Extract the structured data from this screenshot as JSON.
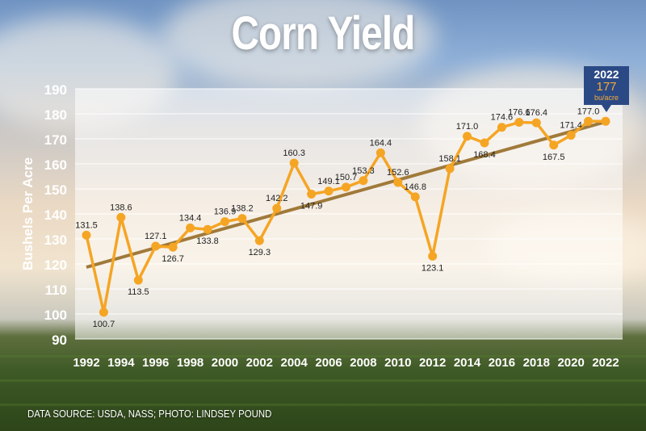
{
  "title": "Corn Yield",
  "source_note": "DATA SOURCE: USDA, NASS; PHOTO: LINDSEY POUND",
  "callout": {
    "year": "2022",
    "value": "177",
    "unit": "bu/acre"
  },
  "colors": {
    "line": "#f5a524",
    "trend": "#a07a3a",
    "callout": "#2b4a85",
    "value_text": "#f2a93b"
  },
  "chart_data": {
    "type": "line",
    "title": "Corn Yield",
    "xlabel": "",
    "ylabel": "Bushels Per Acre",
    "ylim": [
      90,
      190
    ],
    "yticks": [
      90,
      100,
      110,
      120,
      130,
      140,
      150,
      160,
      170,
      180,
      190
    ],
    "xticks": [
      1992,
      1994,
      1996,
      1998,
      2000,
      2002,
      2004,
      2006,
      2008,
      2010,
      2012,
      2014,
      2016,
      2018,
      2020,
      2022
    ],
    "x": [
      1992,
      1993,
      1994,
      1995,
      1996,
      1997,
      1998,
      1999,
      2000,
      2001,
      2002,
      2003,
      2004,
      2005,
      2006,
      2007,
      2008,
      2009,
      2010,
      2011,
      2012,
      2013,
      2014,
      2015,
      2016,
      2017,
      2018,
      2019,
      2020,
      2021,
      2022
    ],
    "values": [
      131.5,
      100.7,
      138.6,
      113.5,
      127.1,
      126.7,
      134.4,
      133.8,
      136.9,
      138.2,
      129.3,
      142.2,
      160.3,
      147.9,
      149.1,
      150.7,
      153.3,
      164.4,
      152.6,
      146.8,
      123.1,
      158.1,
      171.0,
      168.4,
      174.6,
      176.6,
      176.4,
      167.5,
      171.4,
      177.0,
      177
    ],
    "point_labels": [
      "131.5",
      "100.7",
      "138.6",
      "113.5",
      "127.1",
      "126.7",
      "134.4",
      "133.8",
      "136.9",
      "138.2",
      "129.3",
      "142.2",
      "160.3",
      "147.9",
      "149.1",
      "150.7",
      "153.3",
      "164.4",
      "152.6",
      "146.8",
      "123.1",
      "158.1",
      "171.0",
      "168.4",
      "174.6",
      "176.6",
      "176.4",
      "167.5",
      "171.4",
      "177.0",
      ""
    ],
    "trendline": {
      "x": [
        1992,
        2022
      ],
      "y": [
        118.7,
        176.8
      ]
    },
    "grid": true,
    "legend": "none"
  }
}
